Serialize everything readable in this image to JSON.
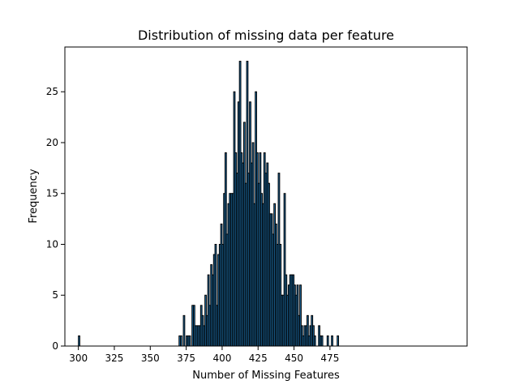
{
  "chart_data": {
    "type": "bar",
    "title": "Distribution of missing data per feature",
    "xlabel": "Number of Missing Features",
    "ylabel": "Frequency",
    "xlim": [
      290.6,
      570.4
    ],
    "ylim": [
      0,
      29.4
    ],
    "x_ticks": [
      300,
      325,
      350,
      375,
      400,
      425,
      450,
      475
    ],
    "y_ticks": [
      0,
      5,
      10,
      15,
      20,
      25
    ],
    "bin_range": [
      300,
      481
    ],
    "bin_width": 1,
    "grid": false,
    "bar_color": "#1f77b4",
    "edge_color": "#000000",
    "bins": [
      {
        "x": 300,
        "count": 1
      },
      {
        "x": 370,
        "count": 1
      },
      {
        "x": 371,
        "count": 1
      },
      {
        "x": 373,
        "count": 3
      },
      {
        "x": 375,
        "count": 1
      },
      {
        "x": 376,
        "count": 1
      },
      {
        "x": 377,
        "count": 1
      },
      {
        "x": 379,
        "count": 4
      },
      {
        "x": 380,
        "count": 4
      },
      {
        "x": 381,
        "count": 2
      },
      {
        "x": 382,
        "count": 2
      },
      {
        "x": 383,
        "count": 2
      },
      {
        "x": 384,
        "count": 2
      },
      {
        "x": 385,
        "count": 4
      },
      {
        "x": 386,
        "count": 3
      },
      {
        "x": 387,
        "count": 2
      },
      {
        "x": 388,
        "count": 5
      },
      {
        "x": 389,
        "count": 3
      },
      {
        "x": 390,
        "count": 7
      },
      {
        "x": 391,
        "count": 4
      },
      {
        "x": 392,
        "count": 8
      },
      {
        "x": 393,
        "count": 7
      },
      {
        "x": 394,
        "count": 9
      },
      {
        "x": 395,
        "count": 10
      },
      {
        "x": 396,
        "count": 4
      },
      {
        "x": 397,
        "count": 9
      },
      {
        "x": 398,
        "count": 10
      },
      {
        "x": 399,
        "count": 12
      },
      {
        "x": 400,
        "count": 10
      },
      {
        "x": 401,
        "count": 15
      },
      {
        "x": 402,
        "count": 19
      },
      {
        "x": 403,
        "count": 11
      },
      {
        "x": 404,
        "count": 14
      },
      {
        "x": 405,
        "count": 15
      },
      {
        "x": 406,
        "count": 15
      },
      {
        "x": 407,
        "count": 15
      },
      {
        "x": 408,
        "count": 25
      },
      {
        "x": 409,
        "count": 19
      },
      {
        "x": 410,
        "count": 17
      },
      {
        "x": 411,
        "count": 24
      },
      {
        "x": 412,
        "count": 28
      },
      {
        "x": 413,
        "count": 19
      },
      {
        "x": 414,
        "count": 18
      },
      {
        "x": 415,
        "count": 22
      },
      {
        "x": 416,
        "count": 16
      },
      {
        "x": 417,
        "count": 28
      },
      {
        "x": 418,
        "count": 17
      },
      {
        "x": 419,
        "count": 24
      },
      {
        "x": 420,
        "count": 18
      },
      {
        "x": 421,
        "count": 20
      },
      {
        "x": 422,
        "count": 14
      },
      {
        "x": 423,
        "count": 25
      },
      {
        "x": 424,
        "count": 19
      },
      {
        "x": 425,
        "count": 16
      },
      {
        "x": 426,
        "count": 19
      },
      {
        "x": 427,
        "count": 15
      },
      {
        "x": 428,
        "count": 14
      },
      {
        "x": 429,
        "count": 19
      },
      {
        "x": 430,
        "count": 17
      },
      {
        "x": 431,
        "count": 18
      },
      {
        "x": 432,
        "count": 16
      },
      {
        "x": 433,
        "count": 13
      },
      {
        "x": 434,
        "count": 13
      },
      {
        "x": 435,
        "count": 11
      },
      {
        "x": 436,
        "count": 14
      },
      {
        "x": 437,
        "count": 12
      },
      {
        "x": 438,
        "count": 10
      },
      {
        "x": 439,
        "count": 17
      },
      {
        "x": 440,
        "count": 10
      },
      {
        "x": 441,
        "count": 5
      },
      {
        "x": 442,
        "count": 5
      },
      {
        "x": 443,
        "count": 15
      },
      {
        "x": 444,
        "count": 7
      },
      {
        "x": 445,
        "count": 5
      },
      {
        "x": 446,
        "count": 6
      },
      {
        "x": 447,
        "count": 7
      },
      {
        "x": 448,
        "count": 7
      },
      {
        "x": 449,
        "count": 7
      },
      {
        "x": 450,
        "count": 6
      },
      {
        "x": 451,
        "count": 5
      },
      {
        "x": 452,
        "count": 6
      },
      {
        "x": 453,
        "count": 3
      },
      {
        "x": 454,
        "count": 6
      },
      {
        "x": 455,
        "count": 2
      },
      {
        "x": 456,
        "count": 1
      },
      {
        "x": 457,
        "count": 2
      },
      {
        "x": 458,
        "count": 2
      },
      {
        "x": 459,
        "count": 3
      },
      {
        "x": 460,
        "count": 1
      },
      {
        "x": 461,
        "count": 2
      },
      {
        "x": 462,
        "count": 3
      },
      {
        "x": 463,
        "count": 2
      },
      {
        "x": 464,
        "count": 1
      },
      {
        "x": 467,
        "count": 2
      },
      {
        "x": 468,
        "count": 1
      },
      {
        "x": 469,
        "count": 1
      },
      {
        "x": 473,
        "count": 1
      },
      {
        "x": 476,
        "count": 1
      },
      {
        "x": 480,
        "count": 1
      }
    ]
  }
}
